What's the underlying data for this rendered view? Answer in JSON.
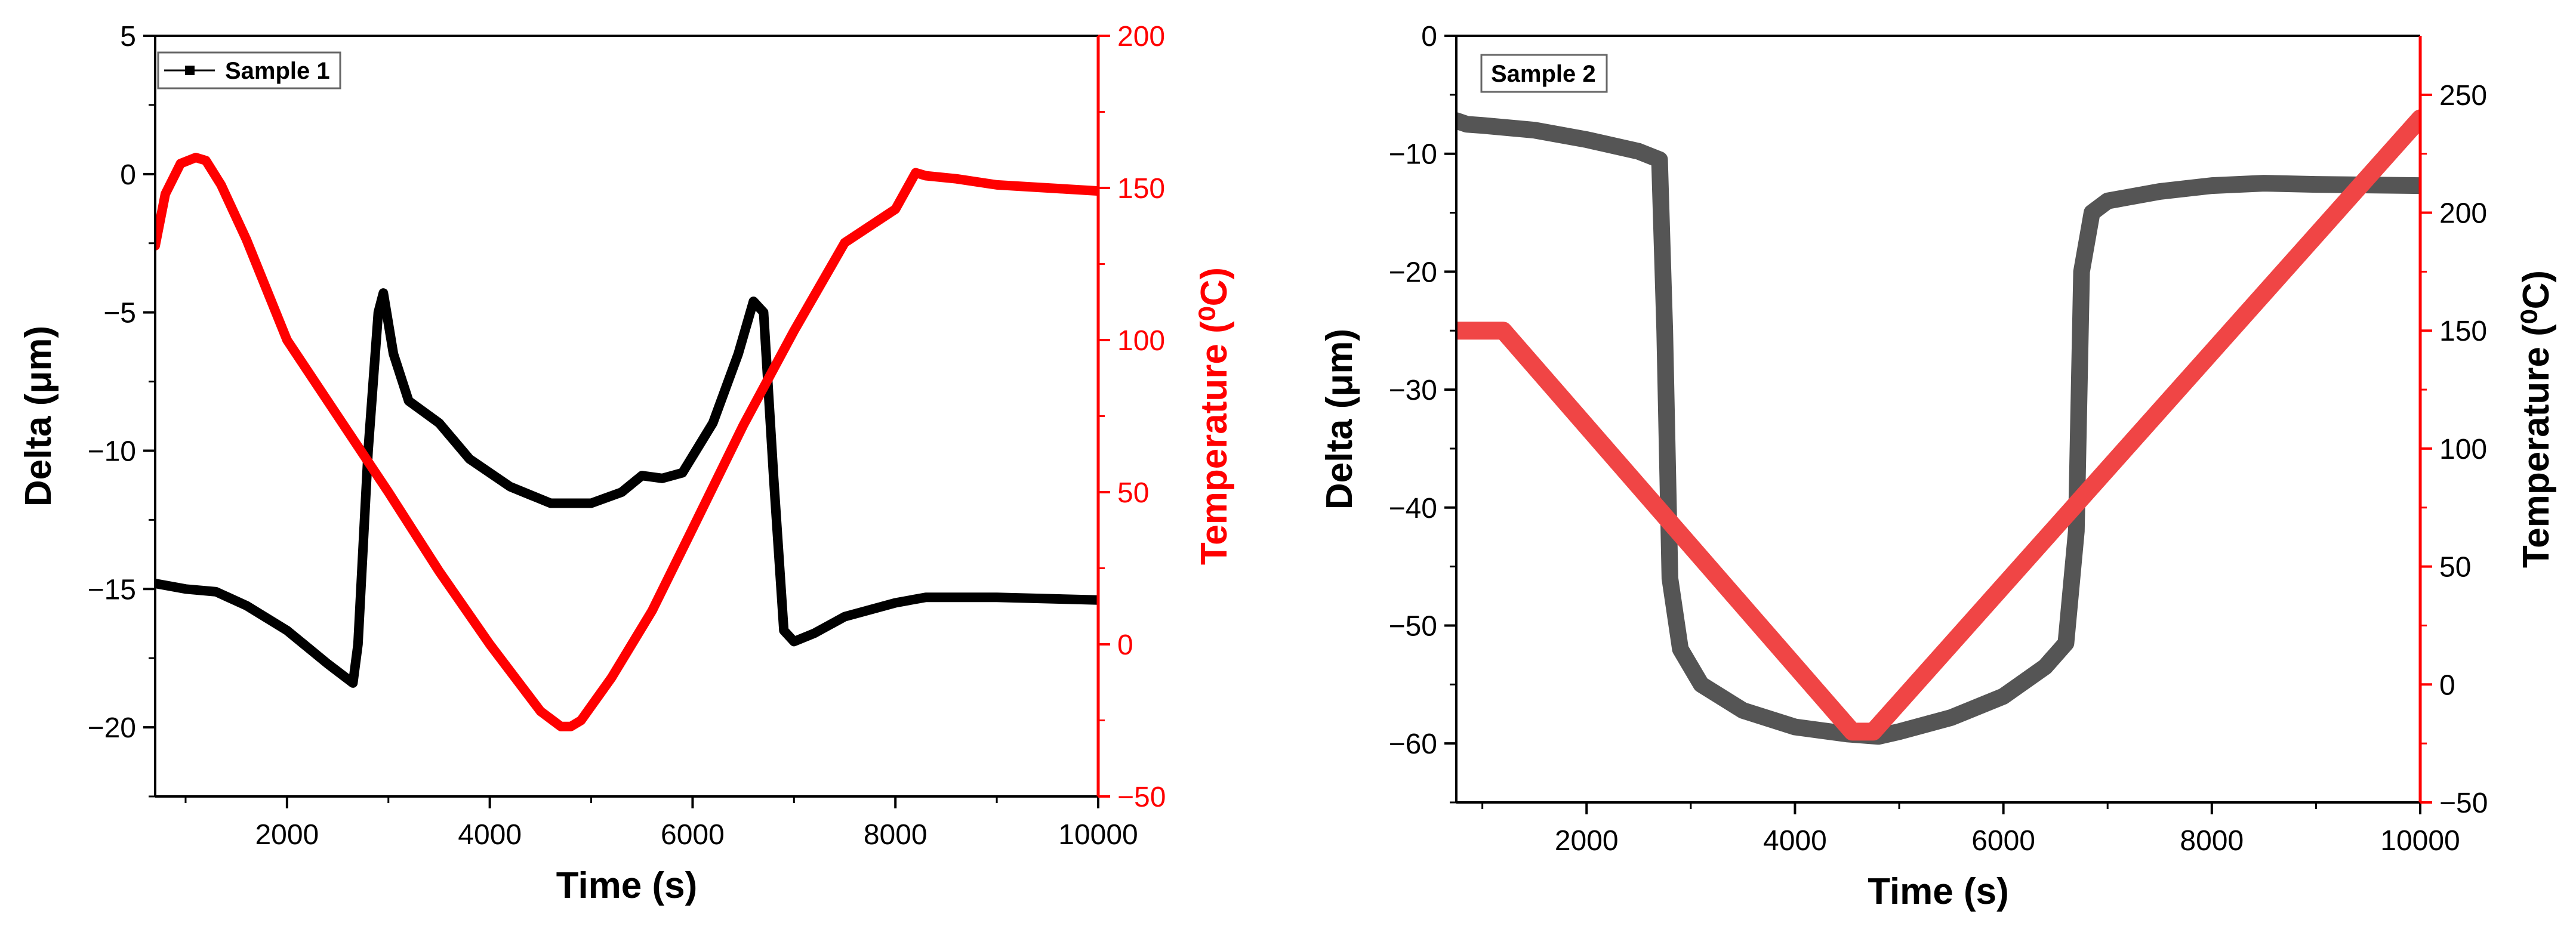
{
  "chart_data": [
    {
      "type": "line",
      "legend": "Sample 1",
      "xlabel": "Time (s)",
      "xlim": [
        700,
        10000
      ],
      "xticks": [
        2000,
        4000,
        6000,
        8000,
        10000
      ],
      "xtick_labels": [
        "2000",
        "4000",
        "6000",
        "8000",
        "10000"
      ],
      "ylabel": "Delta (μm)",
      "ylim": [
        -22.5,
        5
      ],
      "yticks": [
        5,
        0,
        -5,
        -10,
        -15,
        -20
      ],
      "ytick_labels": [
        "5",
        "0",
        "−5",
        "−10",
        "−15",
        "−20"
      ],
      "y2label": "Temperature (⁰C)",
      "y2lim": [
        -50,
        200
      ],
      "y2ticks": [
        200,
        150,
        100,
        50,
        0,
        -50
      ],
      "y2tick_labels": [
        "200",
        "150",
        "100",
        "50",
        "0",
        "−50"
      ],
      "series": [
        {
          "name": "Sample 1",
          "axis": "left",
          "color": "#000000",
          "x": [
            700,
            1000,
            1300,
            1600,
            2000,
            2400,
            2650,
            2700,
            2800,
            2900,
            2950,
            3050,
            3200,
            3500,
            3800,
            4200,
            4600,
            5000,
            5300,
            5500,
            5700,
            5900,
            6200,
            6450,
            6600,
            6700,
            6800,
            6900,
            7000,
            7200,
            7500,
            8000,
            8300,
            9000,
            10000
          ],
          "values": [
            -14.8,
            -15.0,
            -15.1,
            -15.6,
            -16.5,
            -17.7,
            -18.4,
            -17.0,
            -10.0,
            -5.0,
            -4.3,
            -6.5,
            -8.2,
            -9.0,
            -10.3,
            -11.3,
            -11.9,
            -11.9,
            -11.5,
            -10.9,
            -11.0,
            -10.8,
            -9.0,
            -6.5,
            -4.6,
            -5.0,
            -11.0,
            -16.5,
            -16.9,
            -16.6,
            -16.0,
            -15.5,
            -15.3,
            -15.3,
            -15.4
          ]
        },
        {
          "name": "Temperature",
          "axis": "right",
          "color": "#ff0000",
          "x": [
            700,
            800,
            950,
            1100,
            1200,
            1350,
            1600,
            2000,
            2500,
            3000,
            3500,
            4000,
            4500,
            4700,
            4800,
            4900,
            5200,
            5600,
            6000,
            6500,
            7000,
            7500,
            8000,
            8200,
            8300,
            8600,
            9000,
            9500,
            10000
          ],
          "values": [
            131,
            148,
            158,
            160,
            159,
            151,
            133,
            100,
            75,
            50,
            24,
            0,
            -22,
            -27,
            -27,
            -25,
            -11,
            11,
            38,
            72,
            103,
            132,
            143,
            155,
            154,
            153,
            151,
            150,
            149
          ]
        }
      ]
    },
    {
      "type": "line",
      "legend": "Sample 2",
      "xlabel": "Time (s)",
      "xlim": [
        750,
        10000
      ],
      "xticks": [
        2000,
        4000,
        6000,
        8000,
        10000
      ],
      "xtick_labels": [
        "2000",
        "4000",
        "6000",
        "8000",
        "10000"
      ],
      "ylabel": "Delta (μm)",
      "ylim": [
        -65,
        0
      ],
      "yticks": [
        0,
        -10,
        -20,
        -30,
        -40,
        -50,
        -60
      ],
      "ytick_labels": [
        "0",
        "−10",
        "−20",
        "−30",
        "−40",
        "−50",
        "−60"
      ],
      "y2label": "Temperature (⁰C)",
      "y2lim": [
        -50,
        275
      ],
      "y2ticks": [
        250,
        200,
        150,
        100,
        50,
        0,
        -50
      ],
      "y2tick_labels": [
        "250",
        "200",
        "150",
        "100",
        "50",
        "0",
        "−50"
      ],
      "series": [
        {
          "name": "Sample 2",
          "axis": "left",
          "color": "#555555",
          "x": [
            750,
            850,
            1000,
            1500,
            2000,
            2500,
            2700,
            2750,
            2800,
            2900,
            3100,
            3500,
            4000,
            4500,
            4800,
            5000,
            5500,
            6000,
            6400,
            6600,
            6700,
            6750,
            6850,
            7000,
            7500,
            8000,
            8500,
            9000,
            10000
          ],
          "values": [
            -7.2,
            -7.5,
            -7.6,
            -8.0,
            -8.8,
            -9.8,
            -10.5,
            -25.0,
            -46.0,
            -52.0,
            -55.0,
            -57.2,
            -58.6,
            -59.2,
            -59.4,
            -59.0,
            -57.8,
            -56.0,
            -53.5,
            -51.5,
            -42.0,
            -20.0,
            -15.0,
            -14.0,
            -13.2,
            -12.7,
            -12.5,
            -12.6,
            -12.7
          ]
        },
        {
          "name": "Temperature",
          "axis": "right",
          "color": "#f04545",
          "x": [
            750,
            1200,
            4550,
            4750,
            10000
          ],
          "values": [
            150,
            150,
            -20,
            -20,
            240
          ]
        }
      ]
    }
  ]
}
